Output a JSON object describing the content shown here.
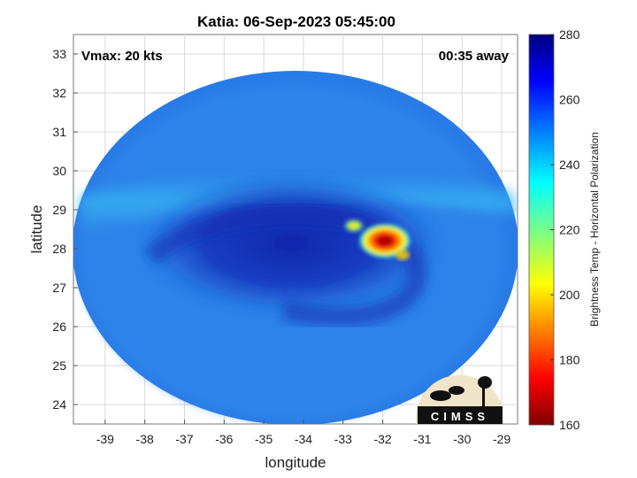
{
  "title": "Katia: 06-Sep-2023 05:45:00",
  "annotations": {
    "vmax": "Vmax: 20 kts",
    "eta": "00:35 away"
  },
  "logo": {
    "text": "CIMSS"
  },
  "colorbar": {
    "label": "Brightness Temp - Horizontal Polarization",
    "range": [
      160,
      280
    ],
    "ticks": [
      "160",
      "180",
      "200",
      "220",
      "240",
      "260",
      "280"
    ],
    "colormap": "jet"
  },
  "chart_data": {
    "type": "heatmap",
    "title": "Katia: 06-Sep-2023 05:45:00",
    "xlabel": "longitude",
    "ylabel": "latitude",
    "xlim": [
      -39.8,
      -28.6
    ],
    "ylim": [
      23.5,
      33.5
    ],
    "xticks": [
      "-39",
      "-38",
      "-37",
      "-36",
      "-35",
      "-34",
      "-33",
      "-32",
      "-31",
      "-30",
      "-29"
    ],
    "yticks": [
      "24",
      "25",
      "26",
      "27",
      "28",
      "29",
      "30",
      "31",
      "32",
      "33"
    ],
    "grid": true,
    "field": {
      "description_units": "brightness temperature (K)",
      "background": 245,
      "features": [
        {
          "kind": "band",
          "lat": 29.2,
          "value": 240
        },
        {
          "kind": "swirl_dark",
          "center": [
            -34.2,
            28.2
          ],
          "value": 262
        },
        {
          "kind": "cold_core",
          "center": [
            -31.8,
            28.2
          ],
          "min_value": 165
        },
        {
          "kind": "cold_spot",
          "center": [
            -32.6,
            28.5
          ],
          "min_value": 205
        }
      ]
    }
  }
}
